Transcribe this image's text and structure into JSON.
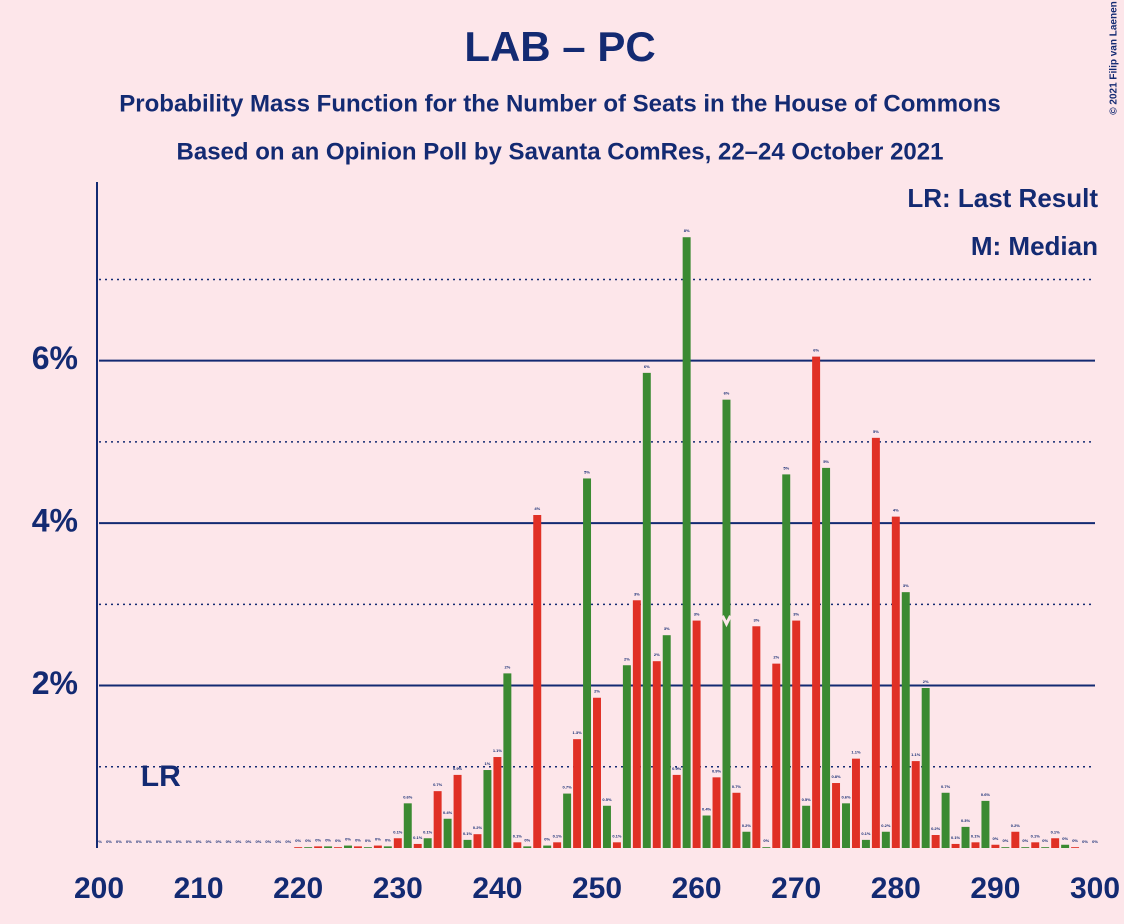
{
  "chart_data": {
    "type": "bar",
    "title": "LAB – PC",
    "subtitle": "Probability Mass Function for the Number of Seats in the House of Commons",
    "subtitle2": "Based on an Opinion Poll by Savanta ComRes, 22–24 October 2021",
    "copyright": "© 2021 Filip van Laenen",
    "legend": [
      "LR: Last Result",
      "M: Median"
    ],
    "lr_label": "LR",
    "last_result": 205,
    "median": 263,
    "colors": [
      "#e03025",
      "#3b8a32"
    ],
    "x": [
      200,
      201,
      202,
      203,
      204,
      205,
      206,
      207,
      208,
      209,
      210,
      211,
      212,
      213,
      214,
      215,
      216,
      217,
      218,
      219,
      220,
      221,
      222,
      223,
      224,
      225,
      226,
      227,
      228,
      229,
      230,
      231,
      232,
      233,
      234,
      235,
      236,
      237,
      238,
      239,
      240,
      241,
      242,
      243,
      244,
      245,
      246,
      247,
      248,
      249,
      250,
      251,
      252,
      253,
      254,
      255,
      256,
      257,
      258,
      259,
      260,
      261,
      262,
      263,
      264,
      265,
      266,
      267,
      268,
      269,
      270,
      271,
      272,
      273,
      274,
      275,
      276,
      277,
      278,
      279,
      280,
      281,
      282,
      283,
      284,
      285,
      286,
      287,
      288,
      289,
      290,
      291,
      292,
      293,
      294,
      295,
      296,
      297,
      298,
      299,
      300
    ],
    "values": [
      0,
      0,
      0,
      0,
      0,
      0,
      0,
      0,
      0,
      0,
      0,
      0,
      0,
      0,
      0,
      0,
      0,
      0,
      0,
      0,
      0.01,
      0.01,
      0.02,
      0.02,
      0.01,
      0.03,
      0.02,
      0.01,
      0.03,
      0.02,
      0.12,
      0.55,
      0.05,
      0.12,
      0.7,
      0.36,
      0.9,
      0.1,
      0.17,
      0.96,
      1.12,
      2.15,
      0.07,
      0.02,
      4.1,
      0.03,
      0.07,
      0.67,
      1.34,
      4.55,
      1.85,
      0.52,
      0.07,
      2.25,
      3.05,
      5.85,
      2.3,
      2.62,
      0.9,
      7.52,
      2.8,
      0.4,
      0.87,
      5.52,
      0.68,
      0.2,
      2.73,
      0.01,
      2.27,
      4.6,
      2.8,
      0.52,
      6.05,
      4.68,
      0.8,
      0.55,
      1.1,
      0.1,
      5.05,
      0.2,
      4.08,
      3.15,
      1.07,
      1.97,
      0.16,
      0.68,
      0.05,
      0.26,
      0.07,
      0.58,
      0.04,
      0.01,
      0.2,
      0.01,
      0.07,
      0.01,
      0.12,
      0.04,
      0.01,
      0,
      0
    ],
    "value_labels": [
      "0%",
      "0%",
      "0%",
      "0%",
      "0%",
      "0%",
      "0%",
      "0%",
      "0%",
      "0%",
      "0%",
      "0%",
      "0%",
      "0%",
      "0%",
      "0%",
      "0%",
      "0%",
      "0%",
      "0%",
      "0%",
      "0%",
      "0%",
      "0%",
      "0%",
      "0%",
      "0%",
      "0%",
      "0%",
      "0%",
      "0.1%",
      "0.6%",
      "0.1%",
      "0.1%",
      "0.7%",
      "0.4%",
      "0.9%",
      "0.1%",
      "0.2%",
      "1%",
      "1.1%",
      "2%",
      "0.1%",
      "0%",
      "4%",
      "0%",
      "0.1%",
      "0.7%",
      "1.3%",
      "5%",
      "2%",
      "0.5%",
      "0.1%",
      "2%",
      "3%",
      "6%",
      "2%",
      "3%",
      "0.9%",
      "8%",
      "3%",
      "0.4%",
      "0.9%",
      "6%",
      "0.7%",
      "0.2%",
      "3%",
      "0%",
      "2%",
      "5%",
      "3%",
      "0.5%",
      "6%",
      "5%",
      "0.8%",
      "0.6%",
      "1.1%",
      "0.1%",
      "5%",
      "0.2%",
      "4%",
      "3%",
      "1.1%",
      "2%",
      "0.2%",
      "0.7%",
      "0.1%",
      "0.3%",
      "0.1%",
      "0.6%",
      "0%",
      "0%",
      "0.2%",
      "0%",
      "0.1%",
      "0%",
      "0.1%",
      "0%",
      "0%",
      "0%",
      "0%"
    ],
    "xlim": [
      200,
      300
    ],
    "xticks": [
      200,
      210,
      220,
      230,
      240,
      250,
      260,
      270,
      280,
      290,
      300
    ],
    "ylim": [
      0,
      8.2
    ],
    "yticks": [
      {
        "value": 2,
        "label": "2%"
      },
      {
        "value": 4,
        "label": "4%"
      },
      {
        "value": 6,
        "label": "6%"
      }
    ],
    "minor_yticks": [
      1,
      3,
      5,
      7
    ],
    "grid": true
  }
}
